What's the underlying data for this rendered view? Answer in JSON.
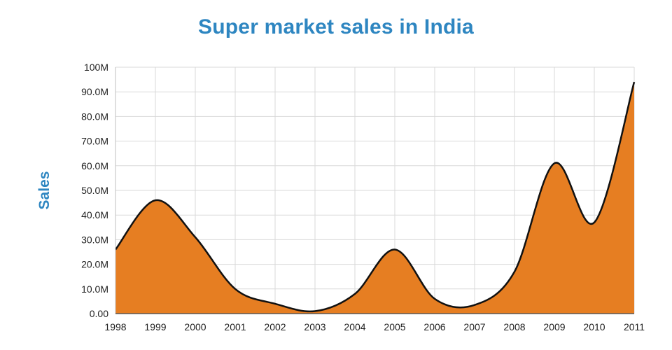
{
  "chart_data": {
    "type": "area",
    "title": "Super market sales in India",
    "xlabel": "",
    "ylabel": "Sales",
    "x": [
      "1998",
      "1999",
      "2000",
      "2001",
      "2002",
      "2003",
      "2004",
      "2005",
      "2006",
      "2007",
      "2008",
      "2009",
      "2010",
      "2011"
    ],
    "series": [
      {
        "values": [
          26000000,
          46000000,
          31000000,
          10000000,
          4000000,
          1000000,
          8000000,
          26000000,
          6000000,
          3500000,
          17000000,
          61000000,
          37000000,
          94000000
        ]
      }
    ],
    "ylim": [
      0,
      100000000
    ],
    "y_ticks": [
      "0.00",
      "10.0M",
      "20.0M",
      "30.0M",
      "40.0M",
      "50.0M",
      "60.0M",
      "70.0M",
      "80.0M",
      "90.0M",
      "100M"
    ],
    "y_tick_values": [
      0,
      10000000,
      20000000,
      30000000,
      40000000,
      50000000,
      60000000,
      70000000,
      80000000,
      90000000,
      100000000
    ],
    "grid": true,
    "colors": {
      "fill": "#e67e22",
      "line": "#111111",
      "grid": "#d9d9d9",
      "title": "#2e86c1"
    }
  }
}
